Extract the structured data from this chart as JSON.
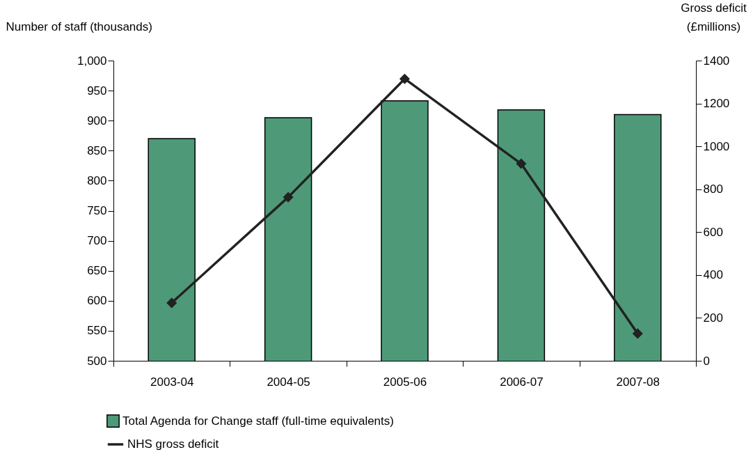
{
  "chart_data": {
    "type": "bar",
    "ylabel": "Number of staff (thousands)",
    "y2label": "Gross deficit (£millions)",
    "categories": [
      "2003-04",
      "2004-05",
      "2005-06",
      "2006-07",
      "2007-08"
    ],
    "series": [
      {
        "name": "Total Agenda for Change staff (full-time equivalents)",
        "color": "#4e9a78",
        "values": [
          870,
          905,
          933,
          918,
          910
        ]
      },
      {
        "name": "NHS gross deficit",
        "type": "line",
        "color": "#222222",
        "axis": "y2",
        "marker": "diamond",
        "values": [
          270,
          763,
          1315,
          919,
          127
        ]
      }
    ],
    "ylim": [
      500,
      1000
    ],
    "yticks": [
      500,
      550,
      600,
      650,
      700,
      750,
      800,
      850,
      900,
      950,
      {
        "value": 1000,
        "label": "1,000"
      }
    ],
    "y2lim": [
      0,
      1400
    ],
    "y2ticks": [
      0,
      200,
      400,
      600,
      800,
      1000,
      1200,
      1400
    ],
    "grid": false,
    "legend": "bottom"
  }
}
